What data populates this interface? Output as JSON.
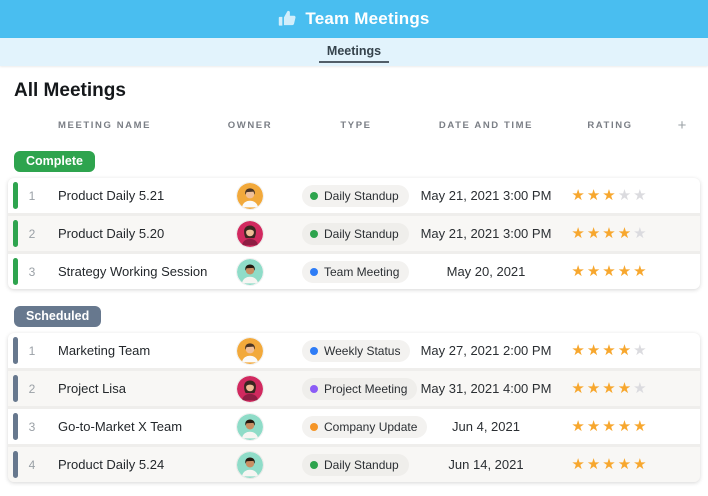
{
  "header": {
    "title": "Team Meetings",
    "icon": "thumbs-up-icon"
  },
  "tabs": [
    {
      "label": "Meetings",
      "active": true
    }
  ],
  "page_title": "All Meetings",
  "colors": {
    "header_bg": "#49BEF0",
    "tab_strip_bg": "#E2F3FC",
    "complete": "#2EA44E",
    "scheduled": "#67788E",
    "star_filled": "#F7A72E",
    "star_empty": "#DBDBDF"
  },
  "table": {
    "columns": [
      "MEETING NAME",
      "OWNER",
      "TYPE",
      "DATE AND TIME",
      "RATING"
    ],
    "add_column_label": "+",
    "groups": [
      {
        "label": "Complete",
        "color": "#2EA44E",
        "rows": [
          {
            "num": "1",
            "name": "Product Daily 5.21",
            "owner_avatar": "avatar-man-orange",
            "type": "Daily Standup",
            "type_color": "#2EA44E",
            "date_time": "May 21, 2021 3:00 PM",
            "rating": 3
          },
          {
            "num": "2",
            "name": "Product Daily 5.20",
            "owner_avatar": "avatar-woman-pink",
            "type": "Daily Standup",
            "type_color": "#2EA44E",
            "date_time": "May 21, 2021 3:00 PM",
            "rating": 4
          },
          {
            "num": "3",
            "name": "Strategy Working Session",
            "owner_avatar": "avatar-man-teal",
            "type": "Team Meeting",
            "type_color": "#2E7CF6",
            "date_time": "May 20, 2021",
            "rating": 5
          }
        ]
      },
      {
        "label": "Scheduled",
        "color": "#67788E",
        "rows": [
          {
            "num": "1",
            "name": "Marketing Team",
            "owner_avatar": "avatar-man-orange",
            "type": "Weekly Status",
            "type_color": "#2E7CF6",
            "date_time": "May 27, 2021 2:00 PM",
            "rating": 4
          },
          {
            "num": "2",
            "name": "Project Lisa",
            "owner_avatar": "avatar-woman-pink",
            "type": "Project Meeting",
            "type_color": "#8B5CF6",
            "date_time": "May 31, 2021 4:00 PM",
            "rating": 4
          },
          {
            "num": "3",
            "name": "Go-to-Market X Team",
            "owner_avatar": "avatar-man-teal",
            "type": "Company Update",
            "type_color": "#F59527",
            "date_time": "Jun 4, 2021",
            "rating": 5
          },
          {
            "num": "4",
            "name": "Product Daily 5.24",
            "owner_avatar": "avatar-man-teal",
            "type": "Daily Standup",
            "type_color": "#2EA44E",
            "date_time": "Jun 14, 2021",
            "rating": 5
          }
        ]
      }
    ]
  }
}
